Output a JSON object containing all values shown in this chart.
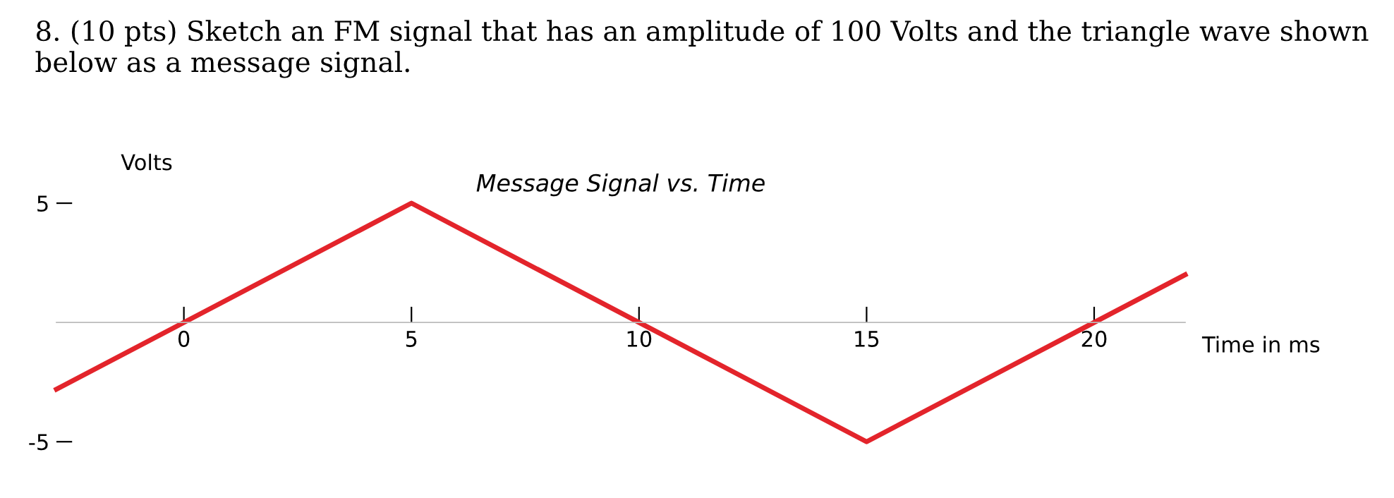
{
  "chart_data": {
    "type": "line",
    "title": "Message Signal vs. Time",
    "xlabel": "Time in ms",
    "ylabel": "Volts",
    "annotations": [
      "8. (10 pts) Sketch an FM signal that has an amplitude of 100 Volts and the triangle wave shown below as a message signal."
    ],
    "x": [
      -2.8,
      5,
      15,
      22
    ],
    "series": [
      {
        "color": "#e3242b",
        "values": [
          -2.8,
          5,
          -5,
          2
        ]
      }
    ],
    "xlim": [
      -2.8,
      22
    ],
    "ylim": [
      -5,
      5
    ],
    "xticks": [
      0,
      5,
      10,
      15,
      20
    ],
    "yticks": [
      -5,
      5
    ],
    "grid": false,
    "line_style": "solid"
  }
}
